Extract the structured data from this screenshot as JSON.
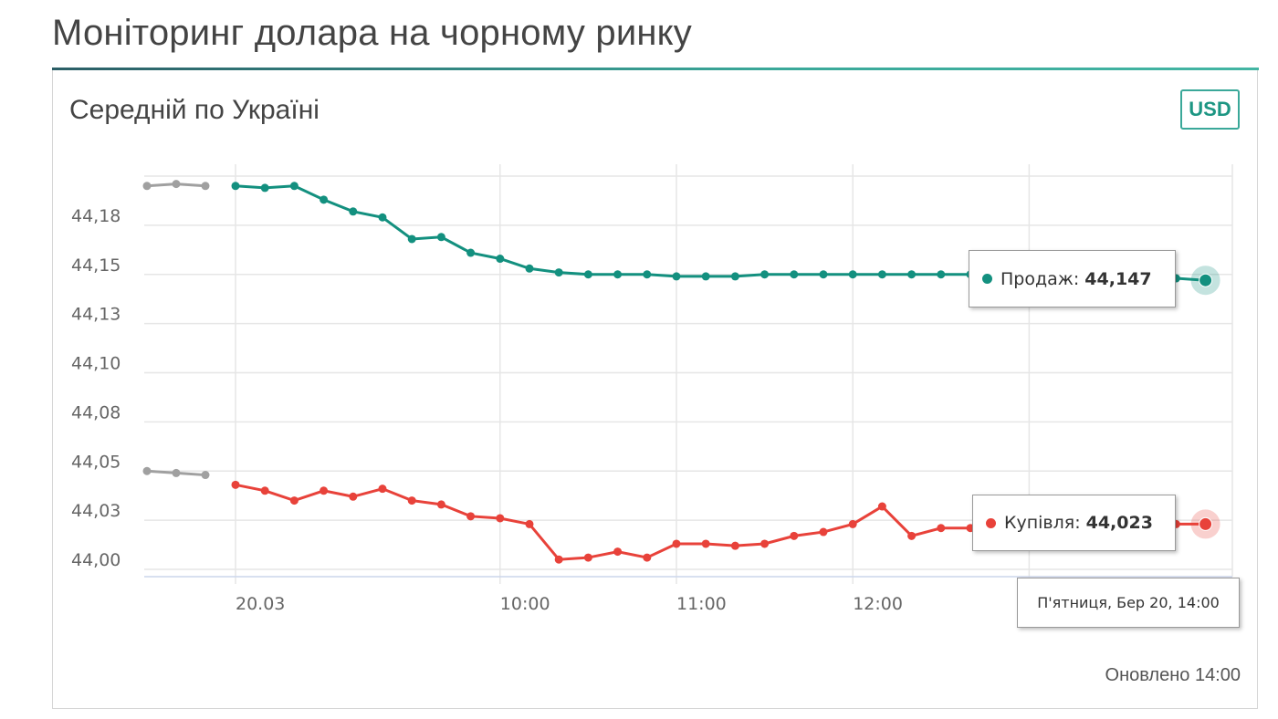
{
  "page_title": "Моніторинг долара на чорному ринку",
  "card": {
    "title": "Середній по Україні",
    "currency_button": "USD",
    "updated": "Оновлено 14:00"
  },
  "tooltips": {
    "sell": {
      "label": "Продаж:",
      "value": "44,147"
    },
    "buy": {
      "label": "Купівля:",
      "value": "44,023"
    },
    "date": "П'ятниця, Бер 20, 14:00"
  },
  "colors": {
    "sell": "#13907f",
    "buy": "#e8423a",
    "previous": "#a0a0a0",
    "accent": "#3aa899"
  },
  "chart_data": {
    "type": "line",
    "ylim": [
      44.0,
      44.2
    ],
    "y_ticks": [
      {
        "value": 44.0,
        "label": "44,00"
      },
      {
        "value": 44.025,
        "label": "44,03"
      },
      {
        "value": 44.05,
        "label": "44,05"
      },
      {
        "value": 44.075,
        "label": "44,08"
      },
      {
        "value": 44.1,
        "label": "44,10"
      },
      {
        "value": 44.125,
        "label": "44,13"
      },
      {
        "value": 44.15,
        "label": "44,15"
      },
      {
        "value": 44.175,
        "label": "44,18"
      }
    ],
    "x_ticks": [
      {
        "x": "08:30",
        "label": "20.03"
      },
      {
        "x": "10:00",
        "label": "10:00"
      },
      {
        "x": "11:00",
        "label": "11:00"
      },
      {
        "x": "12:00",
        "label": "12:00"
      }
    ],
    "x": [
      "08:30",
      "08:40",
      "08:50",
      "09:00",
      "09:10",
      "09:20",
      "09:30",
      "09:40",
      "09:50",
      "10:00",
      "10:10",
      "10:20",
      "10:30",
      "10:40",
      "10:50",
      "11:00",
      "11:10",
      "11:20",
      "11:30",
      "11:40",
      "11:50",
      "12:00",
      "12:10",
      "12:20",
      "12:30",
      "12:40",
      "12:50",
      "13:00",
      "13:10",
      "13:20",
      "13:30",
      "13:40",
      "13:50",
      "14:00"
    ],
    "grid": true,
    "series": [
      {
        "name": "Продаж",
        "key": "sell",
        "values": [
          44.195,
          44.194,
          44.195,
          44.188,
          44.182,
          44.179,
          44.168,
          44.169,
          44.161,
          44.158,
          44.153,
          44.151,
          44.15,
          44.15,
          44.15,
          44.149,
          44.149,
          44.149,
          44.15,
          44.15,
          44.15,
          44.15,
          44.15,
          44.15,
          44.15,
          44.15,
          44.15,
          44.15,
          44.149,
          44.149,
          44.148,
          44.148,
          44.148,
          44.147
        ]
      },
      {
        "name": "Купівля",
        "key": "buy",
        "values": [
          44.043,
          44.04,
          44.035,
          44.04,
          44.037,
          44.041,
          44.035,
          44.033,
          44.027,
          44.026,
          44.023,
          44.005,
          44.006,
          44.009,
          44.006,
          44.013,
          44.013,
          44.012,
          44.013,
          44.017,
          44.019,
          44.023,
          44.032,
          44.017,
          44.021,
          44.021,
          44.021,
          44.022,
          44.022,
          44.022,
          44.023,
          44.023,
          44.023,
          44.023
        ]
      }
    ],
    "previous_day": [
      {
        "key": "sell",
        "values": [
          44.195,
          44.196,
          44.195
        ]
      },
      {
        "key": "buy",
        "values": [
          44.05,
          44.049,
          44.048
        ]
      }
    ]
  }
}
